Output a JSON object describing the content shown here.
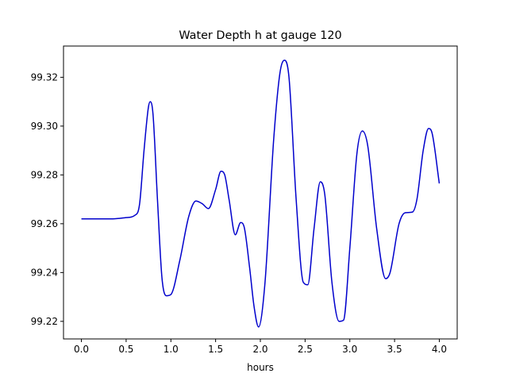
{
  "chart_data": {
    "type": "line",
    "title": "Water Depth h at gauge 120",
    "xlabel": "hours",
    "ylabel": "",
    "xlim": [
      -0.2,
      4.2
    ],
    "ylim": [
      99.2128,
      99.3328
    ],
    "xticks": [
      0.0,
      0.5,
      1.0,
      1.5,
      2.0,
      2.5,
      3.0,
      3.5,
      4.0
    ],
    "xtick_labels": [
      "0.0",
      "0.5",
      "1.0",
      "1.5",
      "2.0",
      "2.5",
      "3.0",
      "3.5",
      "4.0"
    ],
    "yticks": [
      99.22,
      99.24,
      99.26,
      99.28,
      99.3,
      99.32
    ],
    "ytick_labels": [
      "99.22",
      "99.24",
      "99.26",
      "99.28",
      "99.30",
      "99.32"
    ],
    "grid": false,
    "legend": "none",
    "series": [
      {
        "color": "#0000cc",
        "x": [
          0.0,
          0.2,
          0.35,
          0.5,
          0.6,
          0.65,
          0.7,
          0.75,
          0.77,
          0.8,
          0.85,
          0.9,
          0.95,
          1.0,
          1.1,
          1.2,
          1.28,
          1.35,
          1.42,
          1.5,
          1.56,
          1.6,
          1.65,
          1.72,
          1.78,
          1.82,
          1.88,
          1.93,
          1.98,
          2.05,
          2.15,
          2.22,
          2.27,
          2.32,
          2.4,
          2.48,
          2.53,
          2.6,
          2.67,
          2.72,
          2.8,
          2.88,
          2.93,
          3.0,
          3.08,
          3.14,
          3.2,
          3.3,
          3.4,
          3.45,
          3.55,
          3.62,
          3.7,
          3.75,
          3.82,
          3.88,
          3.92,
          4.0
        ],
        "y": [
          99.262,
          99.262,
          99.262,
          99.2625,
          99.2635,
          99.268,
          99.29,
          99.308,
          99.31,
          99.305,
          99.27,
          99.238,
          99.2305,
          99.231,
          99.245,
          99.263,
          99.2693,
          99.2682,
          99.2662,
          99.274,
          99.2815,
          99.2802,
          99.27,
          99.2555,
          99.2605,
          99.2585,
          99.242,
          99.226,
          99.2177,
          99.235,
          99.295,
          99.322,
          99.327,
          99.32,
          99.27,
          99.236,
          99.235,
          99.258,
          99.2772,
          99.272,
          99.236,
          99.22,
          99.2205,
          99.25,
          99.289,
          99.298,
          99.292,
          99.258,
          99.2375,
          99.24,
          99.26,
          99.2645,
          99.2648,
          99.27,
          99.29,
          99.299,
          99.297,
          99.2765
        ]
      }
    ]
  }
}
